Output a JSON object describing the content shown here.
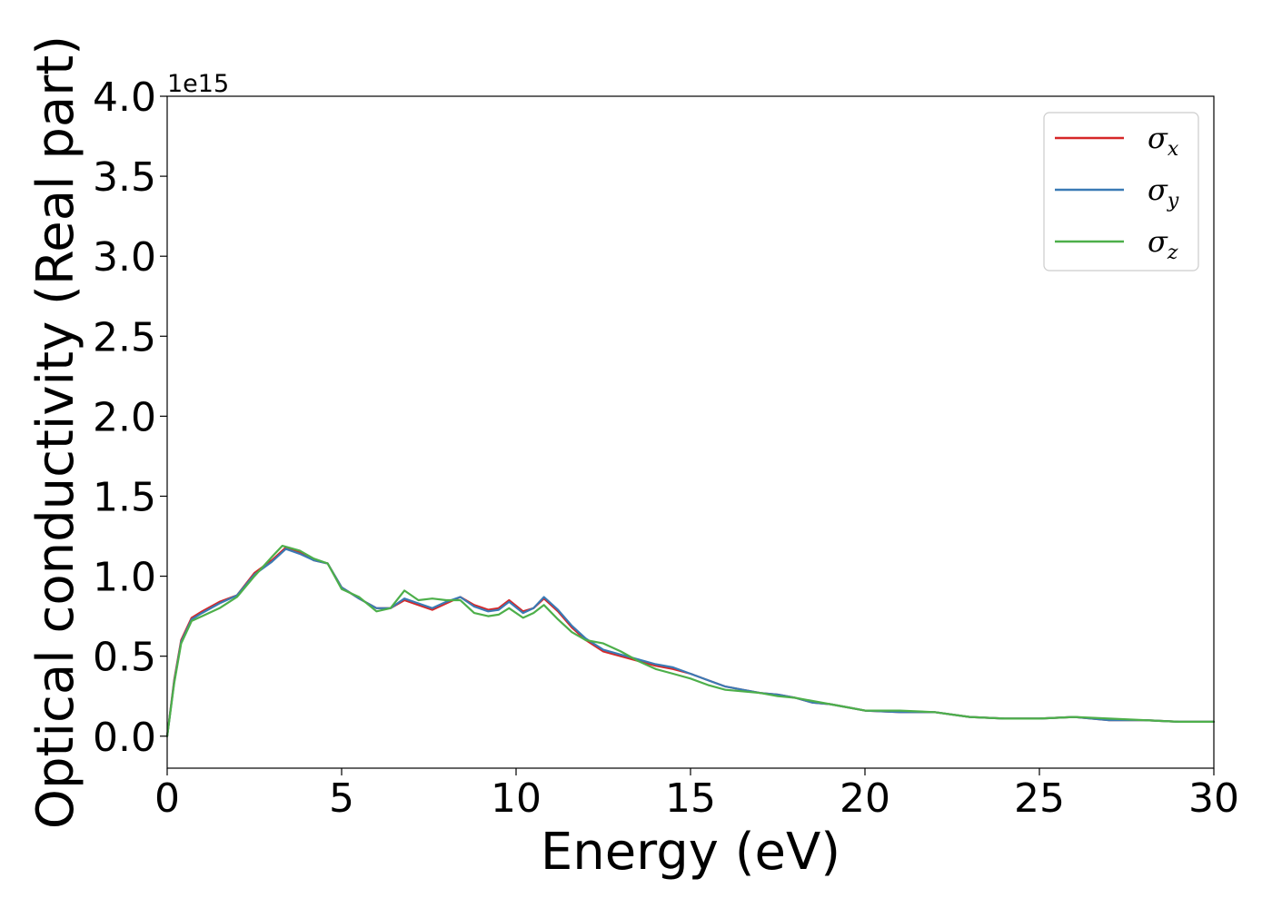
{
  "chart_data": {
    "type": "line",
    "title": "",
    "xlabel": "Energy (eV)",
    "ylabel": "Optical conductivity (Real part)",
    "y_offset_text": "1e15",
    "y_scale_factor": 1000000000000000.0,
    "xlim": [
      0,
      30
    ],
    "ylim": [
      -0.2,
      4.0
    ],
    "x_ticks": [
      0,
      5,
      10,
      15,
      20,
      25,
      30
    ],
    "x_tick_labels": [
      "0",
      "5",
      "10",
      "15",
      "20",
      "25",
      "30"
    ],
    "y_ticks": [
      0.0,
      0.5,
      1.0,
      1.5,
      2.0,
      2.5,
      3.0,
      3.5,
      4.0
    ],
    "y_tick_labels": [
      "0.0",
      "0.5",
      "1.0",
      "1.5",
      "2.0",
      "2.5",
      "3.0",
      "3.5",
      "4.0"
    ],
    "grid": false,
    "legend_position": "top-right",
    "series": [
      {
        "name": "σx",
        "symbol": "σ",
        "subscript": "x",
        "color": "#d62728",
        "x": [
          0,
          0.2,
          0.4,
          0.7,
          1.0,
          1.5,
          2.0,
          2.5,
          3.0,
          3.4,
          3.8,
          4.2,
          4.6,
          5.0,
          5.5,
          6.0,
          6.4,
          6.8,
          7.2,
          7.6,
          8.0,
          8.4,
          8.8,
          9.2,
          9.5,
          9.8,
          10.2,
          10.5,
          10.8,
          11.2,
          11.6,
          12.0,
          12.5,
          13.0,
          13.5,
          14.0,
          14.5,
          15.0,
          15.5,
          16.0,
          16.5,
          17.0,
          17.5,
          18.0,
          18.5,
          19.0,
          19.5,
          20.0,
          21.0,
          22.0,
          23.0,
          24.0,
          25.0,
          26.0,
          27.0,
          28.0,
          29.0,
          30.0
        ],
        "y": [
          0.0,
          0.35,
          0.6,
          0.74,
          0.78,
          0.84,
          0.88,
          1.02,
          1.1,
          1.18,
          1.15,
          1.1,
          1.08,
          0.93,
          0.86,
          0.8,
          0.8,
          0.85,
          0.82,
          0.79,
          0.83,
          0.87,
          0.82,
          0.79,
          0.8,
          0.85,
          0.78,
          0.8,
          0.86,
          0.78,
          0.68,
          0.6,
          0.53,
          0.5,
          0.47,
          0.44,
          0.42,
          0.39,
          0.35,
          0.31,
          0.29,
          0.27,
          0.26,
          0.24,
          0.21,
          0.2,
          0.18,
          0.16,
          0.15,
          0.15,
          0.12,
          0.11,
          0.11,
          0.12,
          0.1,
          0.1,
          0.09,
          0.09
        ]
      },
      {
        "name": "σy",
        "symbol": "σ",
        "subscript": "y",
        "color": "#3a7ab5",
        "x": [
          0,
          0.2,
          0.4,
          0.7,
          1.0,
          1.5,
          2.0,
          2.5,
          3.0,
          3.4,
          3.8,
          4.2,
          4.6,
          5.0,
          5.5,
          6.0,
          6.4,
          6.8,
          7.2,
          7.6,
          8.0,
          8.4,
          8.8,
          9.2,
          9.5,
          9.8,
          10.2,
          10.5,
          10.8,
          11.2,
          11.6,
          12.0,
          12.5,
          13.0,
          13.5,
          14.0,
          14.5,
          15.0,
          15.5,
          16.0,
          16.5,
          17.0,
          17.5,
          18.0,
          18.5,
          19.0,
          19.5,
          20.0,
          21.0,
          22.0,
          23.0,
          24.0,
          25.0,
          26.0,
          27.0,
          28.0,
          29.0,
          30.0
        ],
        "y": [
          0.0,
          0.34,
          0.59,
          0.73,
          0.77,
          0.83,
          0.88,
          1.01,
          1.09,
          1.17,
          1.14,
          1.1,
          1.08,
          0.93,
          0.86,
          0.8,
          0.8,
          0.86,
          0.83,
          0.8,
          0.84,
          0.87,
          0.81,
          0.78,
          0.79,
          0.84,
          0.77,
          0.8,
          0.87,
          0.79,
          0.69,
          0.61,
          0.54,
          0.51,
          0.48,
          0.45,
          0.43,
          0.39,
          0.35,
          0.31,
          0.29,
          0.27,
          0.26,
          0.24,
          0.21,
          0.2,
          0.18,
          0.16,
          0.15,
          0.15,
          0.12,
          0.11,
          0.11,
          0.12,
          0.1,
          0.1,
          0.09,
          0.09
        ]
      },
      {
        "name": "σz",
        "symbol": "σ",
        "subscript": "z",
        "color": "#4daf4a",
        "x": [
          0,
          0.2,
          0.4,
          0.7,
          1.0,
          1.5,
          2.0,
          2.5,
          3.0,
          3.3,
          3.8,
          4.2,
          4.6,
          5.0,
          5.5,
          6.0,
          6.4,
          6.8,
          7.2,
          7.6,
          8.0,
          8.4,
          8.8,
          9.2,
          9.5,
          9.8,
          10.2,
          10.5,
          10.8,
          11.2,
          11.6,
          12.0,
          12.5,
          13.0,
          13.5,
          14.0,
          14.5,
          15.0,
          15.5,
          16.0,
          16.5,
          17.0,
          17.5,
          18.0,
          18.5,
          19.0,
          19.5,
          20.0,
          21.0,
          22.0,
          23.0,
          24.0,
          25.0,
          26.0,
          27.0,
          28.0,
          29.0,
          30.0
        ],
        "y": [
          0.0,
          0.33,
          0.58,
          0.72,
          0.75,
          0.8,
          0.87,
          1.0,
          1.12,
          1.19,
          1.16,
          1.11,
          1.08,
          0.92,
          0.87,
          0.78,
          0.8,
          0.91,
          0.85,
          0.86,
          0.85,
          0.85,
          0.77,
          0.75,
          0.76,
          0.8,
          0.74,
          0.77,
          0.82,
          0.73,
          0.65,
          0.6,
          0.58,
          0.53,
          0.47,
          0.42,
          0.39,
          0.36,
          0.32,
          0.29,
          0.28,
          0.27,
          0.25,
          0.24,
          0.22,
          0.2,
          0.18,
          0.16,
          0.16,
          0.15,
          0.12,
          0.11,
          0.11,
          0.12,
          0.11,
          0.1,
          0.09,
          0.09
        ]
      }
    ]
  }
}
